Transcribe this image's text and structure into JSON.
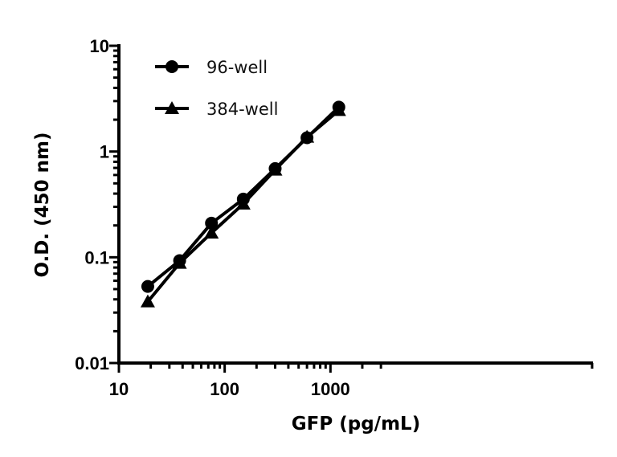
{
  "chart_data": {
    "type": "line",
    "title": "",
    "xlabel": "GFP (pg/mL)",
    "ylabel": "O.D. (450 nm)",
    "xscale": "log",
    "yscale": "log",
    "xlim": [
      10,
      3000
    ],
    "ylim": [
      0.01,
      10
    ],
    "xticks": [
      "10",
      "100",
      "1000"
    ],
    "yticks": [
      "0.01",
      "0.1",
      "1",
      "10"
    ],
    "grid": false,
    "legend_position": "top-left",
    "x": [
      18.75,
      37.5,
      75,
      150,
      300,
      600,
      1200
    ],
    "series": [
      {
        "name": "96-well",
        "marker": "circle",
        "color": "#000000",
        "values": [
          0.053,
          0.093,
          0.21,
          0.355,
          0.69,
          1.35,
          2.63
        ]
      },
      {
        "name": "384-well",
        "marker": "triangle",
        "color": "#000000",
        "values": [
          0.038,
          0.088,
          0.17,
          0.32,
          0.67,
          1.37,
          2.45
        ]
      }
    ]
  }
}
